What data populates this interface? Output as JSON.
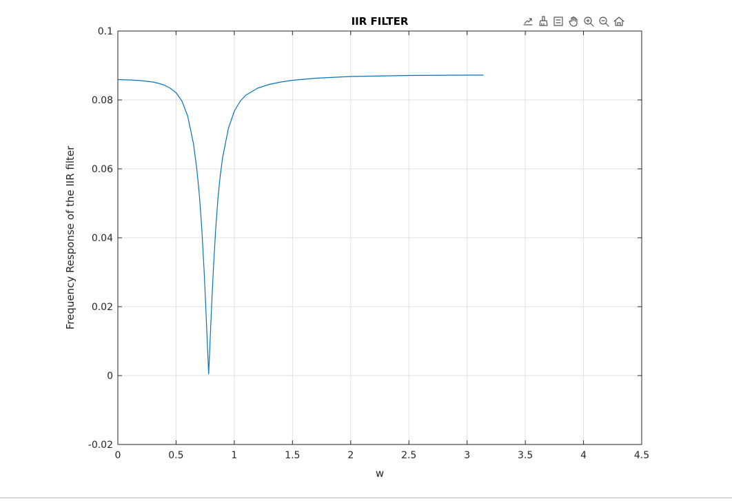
{
  "toolbar": {
    "buttons": [
      {
        "name": "export-icon"
      },
      {
        "name": "brush-icon"
      },
      {
        "name": "data-tips-icon"
      },
      {
        "name": "pan-hand-icon"
      },
      {
        "name": "zoom-in-icon"
      },
      {
        "name": "zoom-out-icon"
      },
      {
        "name": "home-icon"
      }
    ]
  },
  "chart_data": {
    "type": "line",
    "title": "IIR FILTER",
    "xlabel": "w",
    "ylabel": "Frequency Response of the IIR filter",
    "xlim": [
      0,
      4.5
    ],
    "ylim": [
      -0.02,
      0.1
    ],
    "xticks": [
      0,
      0.5,
      1,
      1.5,
      2,
      2.5,
      3,
      3.5,
      4,
      4.5
    ],
    "xtick_labels": [
      "0",
      "0.5",
      "1",
      "1.5",
      "2",
      "2.5",
      "3",
      "3.5",
      "4",
      "4.5"
    ],
    "yticks": [
      -0.02,
      0,
      0.02,
      0.04,
      0.06,
      0.08,
      0.1
    ],
    "ytick_labels": [
      "-0.02",
      "0",
      "0.02",
      "0.04",
      "0.06",
      "0.08",
      "0.1"
    ],
    "grid": true,
    "line_color": "#0072BD",
    "series": [
      {
        "x": [
          0,
          0.1,
          0.2,
          0.3,
          0.35,
          0.4,
          0.45,
          0.5,
          0.55,
          0.6,
          0.65,
          0.68,
          0.7,
          0.72,
          0.74,
          0.75,
          0.76,
          0.77,
          0.775,
          0.78,
          0.785,
          0.79,
          0.8,
          0.81,
          0.82,
          0.84,
          0.86,
          0.88,
          0.9,
          0.95,
          1.0,
          1.05,
          1.1,
          1.2,
          1.3,
          1.4,
          1.5,
          1.7,
          2.0,
          2.5,
          3.0,
          3.1416
        ],
        "y": [
          0.0859,
          0.0858,
          0.0856,
          0.0852,
          0.0848,
          0.0843,
          0.0834,
          0.0821,
          0.0797,
          0.0753,
          0.0672,
          0.0594,
          0.0524,
          0.0432,
          0.031,
          0.0238,
          0.0161,
          0.0081,
          0.0045,
          0.0005,
          0.0042,
          0.0082,
          0.0161,
          0.0235,
          0.0305,
          0.0423,
          0.0515,
          0.0582,
          0.0633,
          0.0718,
          0.0767,
          0.0796,
          0.0814,
          0.0834,
          0.0845,
          0.0852,
          0.0857,
          0.0863,
          0.0868,
          0.0871,
          0.0872,
          0.0872
        ]
      }
    ]
  }
}
